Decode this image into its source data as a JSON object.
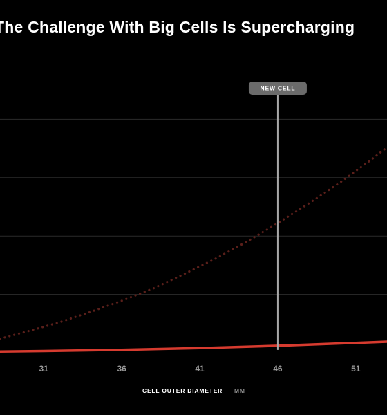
{
  "chart_data": {
    "type": "line",
    "title": "The Challenge With Big Cells Is Supercharging",
    "xlabel": "CELL OUTER DIAMETER",
    "xunit": "MM",
    "ylabel": "",
    "xlim": [
      28.2,
      53
    ],
    "ylim": [
      0,
      5
    ],
    "x_ticks": [
      31,
      36,
      41,
      46,
      51
    ],
    "y_gridlines": [
      1,
      2,
      3,
      4
    ],
    "grid": true,
    "marker": {
      "x": 46,
      "label": "NEW CELL"
    },
    "series": [
      {
        "style": "dotted",
        "color": "#5a1f1a",
        "x": [
          28.2,
          30,
          32,
          34,
          36,
          38,
          40,
          42,
          44,
          46,
          48,
          50,
          52,
          53
        ],
        "values": [
          0.24,
          0.37,
          0.52,
          0.7,
          0.89,
          1.1,
          1.35,
          1.61,
          1.9,
          2.22,
          2.56,
          2.92,
          3.31,
          3.52
        ]
      },
      {
        "style": "solid",
        "color": "#d63b2f",
        "x": [
          28.2,
          31,
          36,
          41,
          46,
          51,
          53
        ],
        "values": [
          0.02,
          0.03,
          0.05,
          0.08,
          0.12,
          0.17,
          0.19
        ]
      }
    ]
  },
  "colors": {
    "background": "#000000",
    "gridline": "#2b2b2b",
    "marker_line": "#a8a8a8",
    "marker_label_bg": "#6b6b6b"
  }
}
